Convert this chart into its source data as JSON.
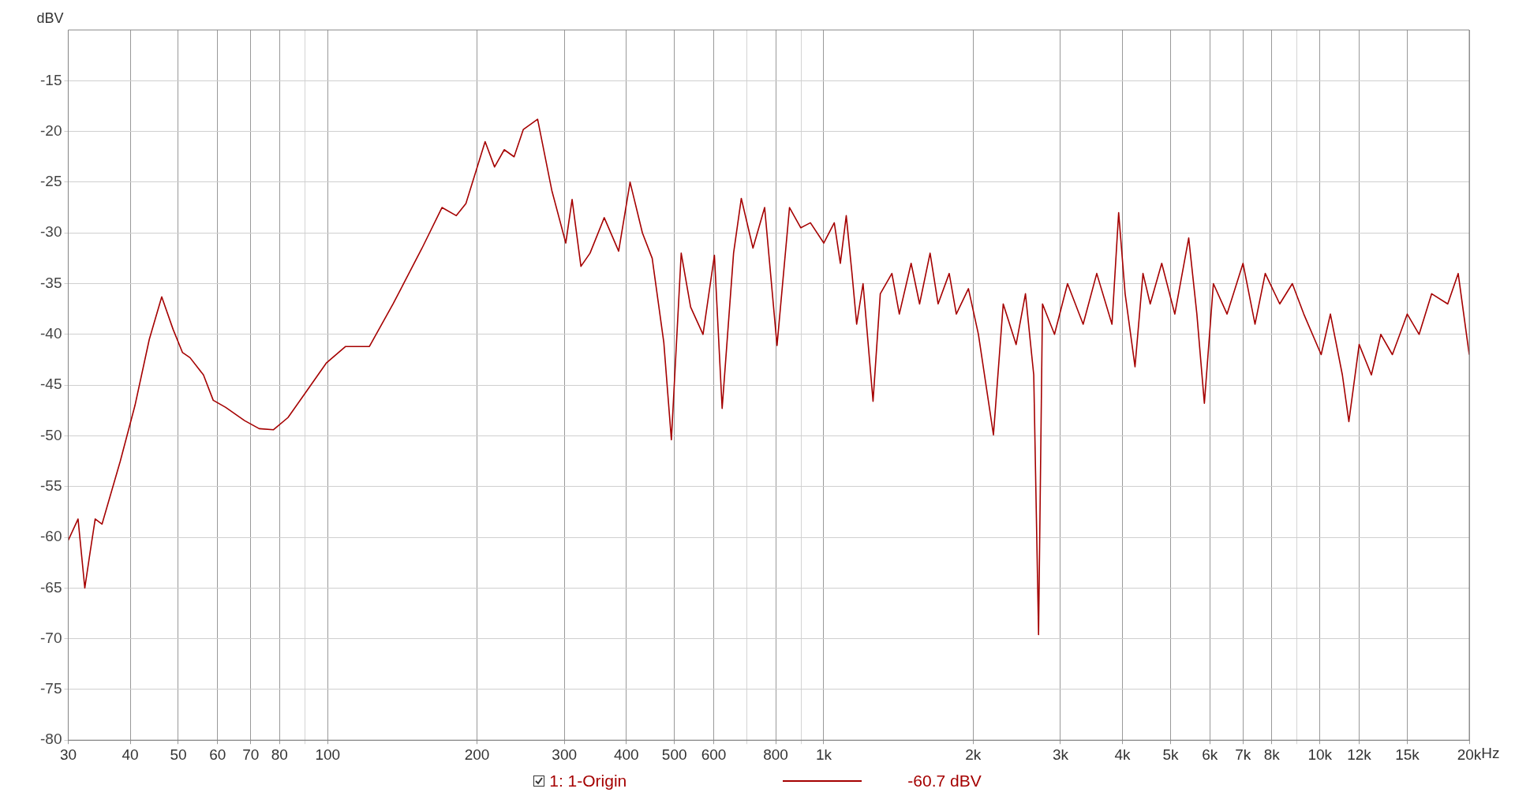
{
  "chart_data": {
    "type": "line",
    "ylabel": "dBV",
    "xlim": [
      30,
      20000
    ],
    "ylim": [
      -80,
      -10
    ],
    "xticks": [
      30,
      40,
      50,
      60,
      70,
      80,
      {
        "value": 90,
        "label": null
      },
      100,
      200,
      300,
      400,
      500,
      600,
      {
        "value": 700,
        "label": null
      },
      800,
      {
        "value": 900,
        "label": null
      },
      {
        "value": 1000,
        "label": "1k"
      },
      {
        "value": 2000,
        "label": "2k"
      },
      {
        "value": 3000,
        "label": "3k"
      },
      {
        "value": 4000,
        "label": "4k"
      },
      {
        "value": 5000,
        "label": "5k"
      },
      {
        "value": 6000,
        "label": "6k"
      },
      {
        "value": 7000,
        "label": "7k"
      },
      {
        "value": 8000,
        "label": "8k"
      },
      {
        "value": 9000,
        "label": null
      },
      {
        "value": 10000,
        "label": "10k"
      },
      {
        "value": 12000,
        "label": "12k"
      },
      {
        "value": 15000,
        "label": "15k"
      },
      {
        "value": 20000,
        "label": "20k"
      }
    ],
    "xlabel": "Hz",
    "yticks": [
      -80,
      -75,
      -70,
      -65,
      -60,
      -55,
      -50,
      -45,
      -40,
      -35,
      -30,
      -25,
      -20,
      -15
    ],
    "log": "x",
    "grid": true,
    "legend": "bottom",
    "marker": "none",
    "line_style": "solid",
    "annotations": [
      "-60.7 dBV"
    ],
    "series": [
      {
        "name": "1: 1-Origin",
        "color": "#a50000",
        "x": [
          30,
          31.4,
          32.4,
          33.2,
          34,
          35.1,
          38.2,
          40.9,
          43.7,
          46.3,
          48.8,
          51,
          52.8,
          56.2,
          58.8,
          62.3,
          68,
          72.8,
          77.8,
          83.2,
          91,
          99.5,
          108.7,
          121.4,
          135.5,
          155,
          170,
          181.7,
          190,
          207.7,
          217,
          227,
          237.6,
          248,
          265,
          283,
          302,
          311,
          324,
          338,
          361,
          386,
          407,
          431,
          451,
          476,
          493,
          516,
          539,
          571,
          602,
          624,
          658,
          682,
          720,
          760,
          805,
          853,
          899,
          940,
          1000,
          1050,
          1080,
          1110,
          1140,
          1165,
          1200,
          1257,
          1300,
          1372,
          1420,
          1500,
          1560,
          1638,
          1700,
          1790,
          1850,
          1957,
          2050,
          2198,
          2300,
          2442,
          2550,
          2650,
          2710,
          2760,
          2918,
          3100,
          3333,
          3550,
          3810,
          3930,
          4050,
          4240,
          4400,
          4550,
          4800,
          5100,
          5440,
          5650,
          5850,
          6100,
          6500,
          7000,
          7400,
          7760,
          8300,
          8800,
          9280,
          10060,
          10500,
          11100,
          11440,
          12000,
          12700,
          13270,
          14000,
          15000,
          15850,
          16800,
          18100,
          19000,
          20000
        ],
        "values": [
          -60.3,
          -58.2,
          -65,
          -61.5,
          -58.2,
          -58.7,
          -52.5,
          -47,
          -40.5,
          -36.3,
          -39.5,
          -41.8,
          -42.3,
          -44,
          -46.5,
          -47.2,
          -48.5,
          -49.3,
          -49.4,
          -48.2,
          -45.5,
          -42.8,
          -41.2,
          -41.2,
          -37,
          -31.5,
          -27.5,
          -28.3,
          -27.1,
          -21,
          -23.5,
          -21.8,
          -22.5,
          -19.8,
          -18.8,
          -25.8,
          -31,
          -26.7,
          -33.3,
          -32,
          -28.5,
          -31.8,
          -25,
          -30,
          -32.5,
          -40.8,
          -50.4,
          -32,
          -37.3,
          -40,
          -32.2,
          -47.3,
          -32,
          -26.6,
          -31.5,
          -27.5,
          -41.1,
          -27.5,
          -29.5,
          -29,
          -31,
          -29,
          -33,
          -28.3,
          -34,
          -39,
          -35,
          -46.6,
          -36,
          -34,
          -38,
          -33,
          -37,
          -32,
          -37,
          -34,
          -38,
          -35.5,
          -40,
          -49.9,
          -37,
          -41,
          -36,
          -44,
          -69.6,
          -37,
          -40,
          -35,
          -39,
          -34,
          -39,
          -28,
          -36,
          -43.2,
          -34,
          -37,
          -33,
          -38,
          -30.5,
          -38,
          -46.8,
          -35,
          -38,
          -33,
          -39,
          -34,
          -37,
          -35,
          -38,
          -42,
          -38,
          -44,
          -48.6,
          -41,
          -44,
          -40,
          -42,
          -38,
          -40,
          -36,
          -37,
          -34,
          -42
        ]
      }
    ]
  }
}
